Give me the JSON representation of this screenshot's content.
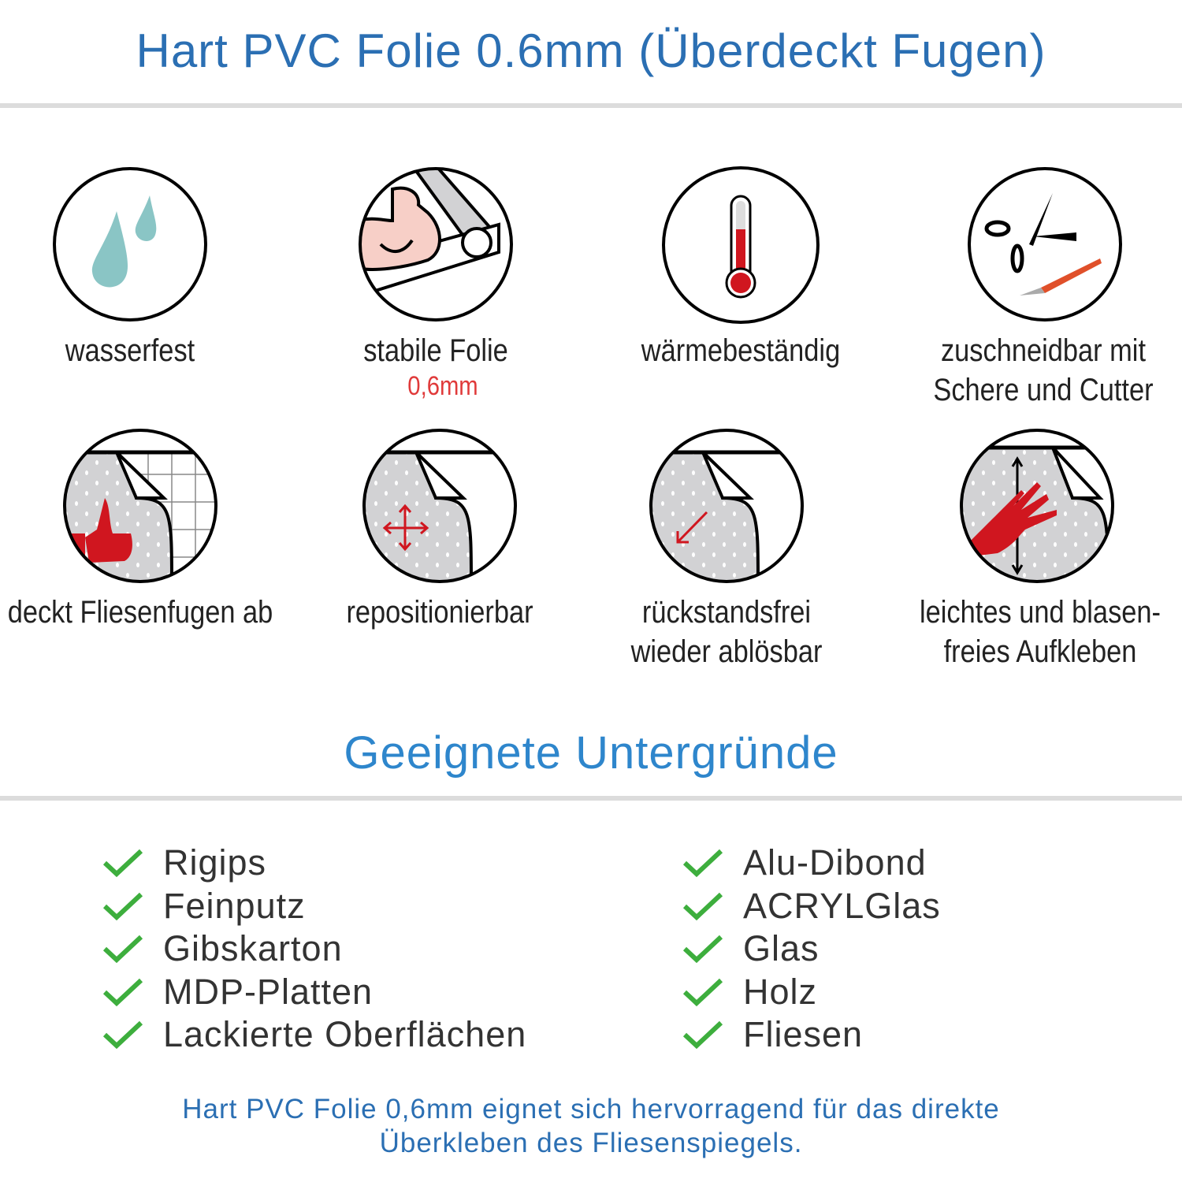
{
  "header": {
    "title": "Hart PVC Folie 0.6mm (Überdeckt Fugen)"
  },
  "features": [
    {
      "icon": "water-drops-icon",
      "line1": "wasserfest"
    },
    {
      "icon": "strong-arm-foil-icon",
      "line1": "stabile Folie",
      "highlight": "0,6mm"
    },
    {
      "icon": "thermometer-icon",
      "line1": "wärmebeständig"
    },
    {
      "icon": "scissors-cutter-icon",
      "line1": "zuschneidbar mit",
      "line2": "Schere und Cutter"
    },
    {
      "icon": "thumbs-up-tiles-icon",
      "line1": "deckt Fliesenfugen ab"
    },
    {
      "icon": "move-arrows-icon",
      "line1": "repositionierbar"
    },
    {
      "icon": "peel-arrow-icon",
      "line1": "rückstandsfrei",
      "line2": "wieder ablösbar"
    },
    {
      "icon": "hand-smoothing-icon",
      "line1": "leichtes und blasen-",
      "line2": "freies Aufkleben"
    }
  ],
  "surfaces": {
    "title": "Geeignete Untergründe",
    "left": [
      "Rigips",
      "Feinputz",
      "Gibskarton",
      "MDP-Platten",
      "Lackierte Oberflächen"
    ],
    "right": [
      "Alu-Dibond",
      "ACRYLGlas",
      "Glas",
      "Holz",
      "Fliesen"
    ]
  },
  "footer": {
    "line1": "Hart PVC Folie 0,6mm eignet sich hervorragend für das direkte",
    "line2": "Überkleben des Fliesenspiegels."
  },
  "colors": {
    "title": "#2b6fb3",
    "subtitle": "#2e86cc",
    "check": "#3dae3d",
    "accent_red": "#d0161f",
    "drop": "#8ac5c5"
  }
}
